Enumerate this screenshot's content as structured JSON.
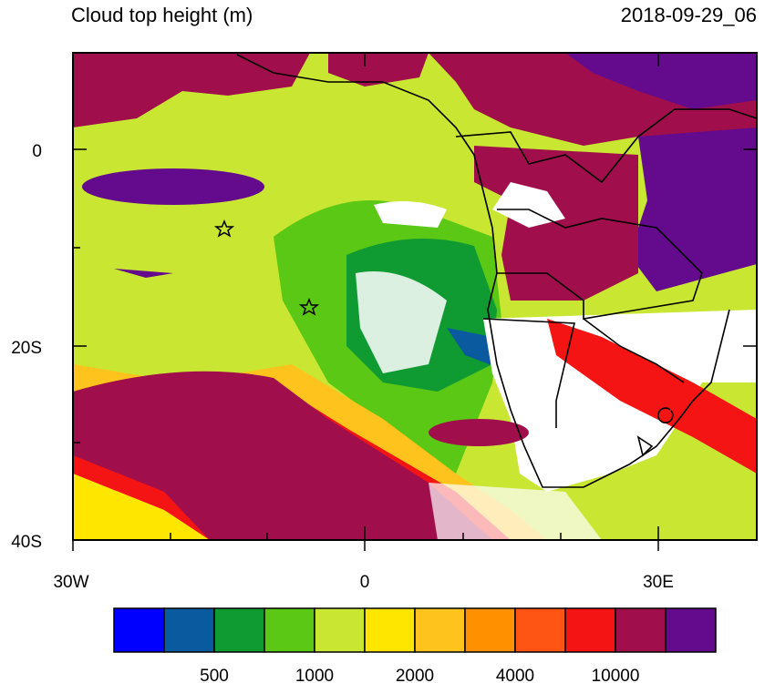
{
  "header": {
    "title": "Cloud top height (m)",
    "timestamp": "2018-09-29_06"
  },
  "map": {
    "lat_labels": [
      "0",
      "20S",
      "40S"
    ],
    "lon_labels": [
      "30W",
      "0",
      "30E"
    ]
  },
  "colorbar": {
    "colors": [
      "#0000ff",
      "#0a5aa0",
      "#0f9b32",
      "#5ac814",
      "#c8e632",
      "#ffe600",
      "#ffc31e",
      "#ff9100",
      "#ff5514",
      "#f51414",
      "#a00f4b",
      "#640a8c"
    ],
    "labels": [
      500,
      1000,
      2000,
      4000,
      10000
    ]
  }
}
